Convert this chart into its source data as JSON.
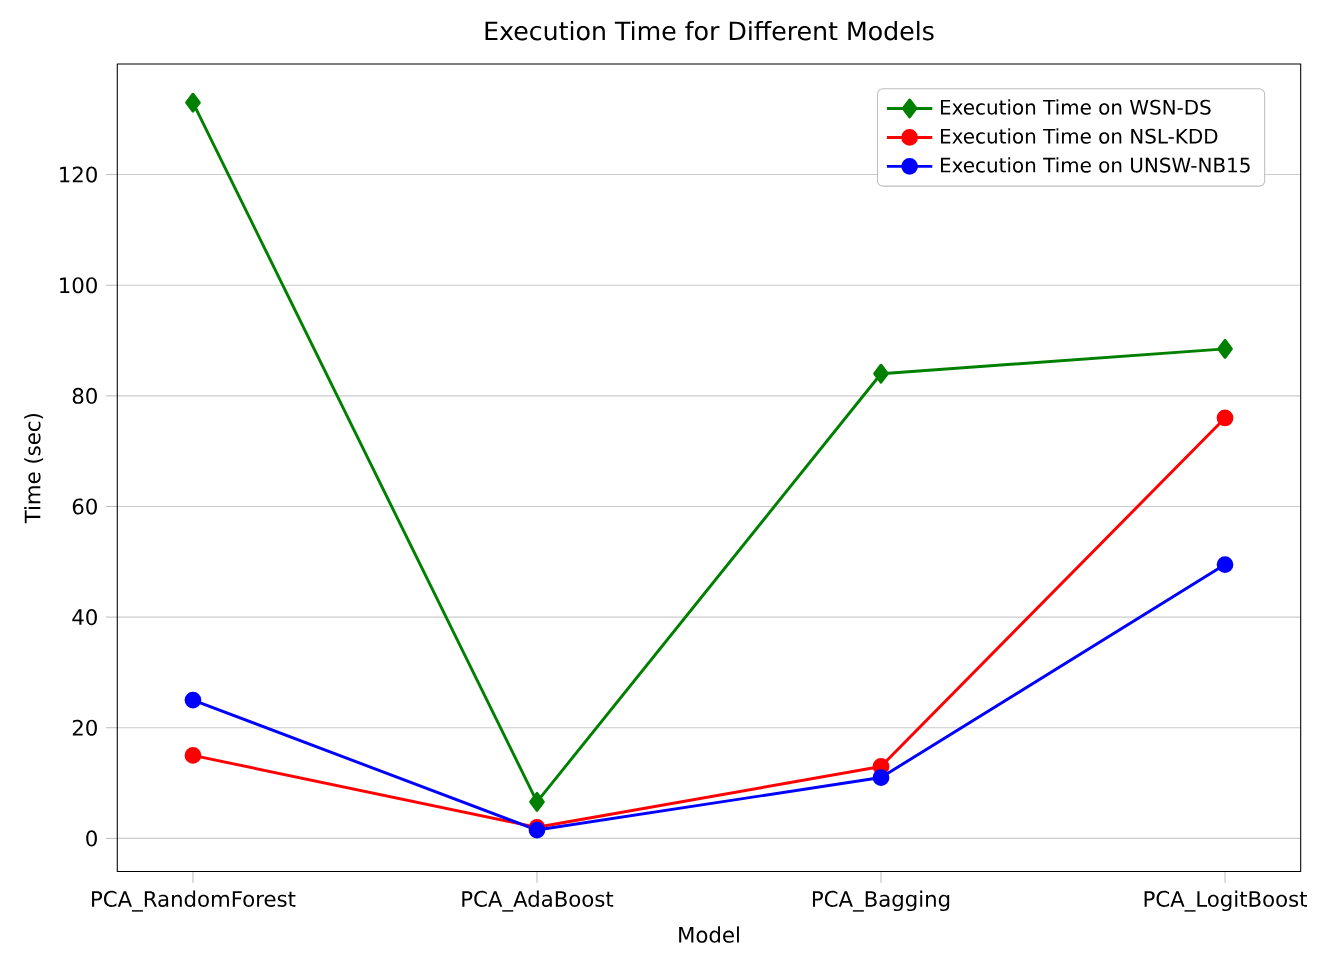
{
  "chart_data": {
    "type": "line",
    "title": "Execution Time for Different Models",
    "xlabel": "Model",
    "ylabel": "Time (sec)",
    "categories": [
      "PCA_RandomForest",
      "PCA_AdaBoost",
      "PCA_Bagging",
      "PCA_LogitBoost"
    ],
    "series": [
      {
        "name": "Execution Time on WSN-DS",
        "color": "#008000",
        "marker": "diamond",
        "values": [
          133,
          6.6,
          84,
          88.5
        ]
      },
      {
        "name": "Execution Time on NSL-KDD",
        "color": "#ff0000",
        "marker": "circle",
        "values": [
          15,
          2,
          13,
          76
        ]
      },
      {
        "name": "Execution Time on UNSW-NB15",
        "color": "#0000ff",
        "marker": "circle",
        "values": [
          25,
          1.5,
          11,
          49.5
        ]
      }
    ],
    "ylim": [
      -6,
      140
    ],
    "yticks": [
      0,
      20,
      40,
      60,
      80,
      100,
      120
    ],
    "grid": "y",
    "legend": "top right",
    "line_style": "solid"
  }
}
